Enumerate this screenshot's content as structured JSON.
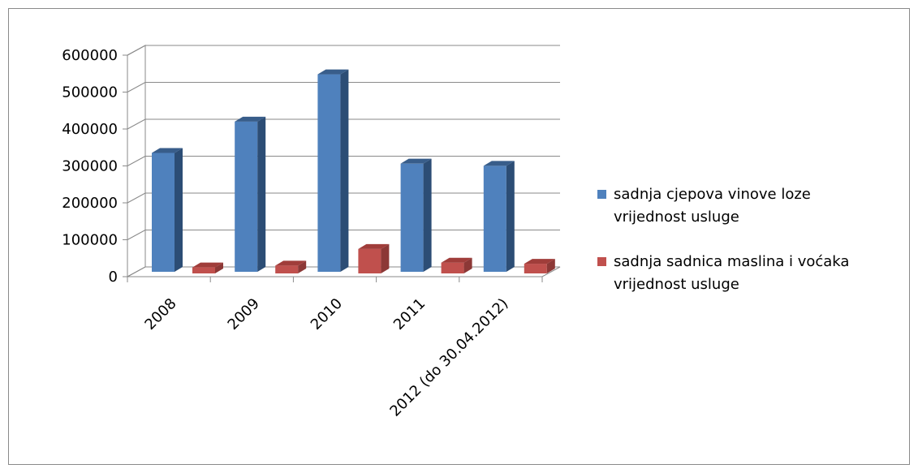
{
  "chart_data": {
    "type": "bar",
    "style": "3d-clustered-column",
    "categories": [
      "2008",
      "2009",
      "2010",
      "2011",
      "2012 (do 30.04.2012)"
    ],
    "series": [
      {
        "name": "sadnja cjepova vinove loze vrijednost usluge",
        "name_lines": [
          "sadnja cjepova vinove loze",
          "vrijednost usluge"
        ],
        "color": "#4F81BD",
        "side_color": "#2C4D75",
        "top_color": "#385D8A",
        "values": [
          322000,
          407000,
          535000,
          293000,
          287000
        ]
      },
      {
        "name": "sadnja sadnica maslina i voćaka vrijednost usluge",
        "name_lines": [
          "sadnja sadnica maslina i voćaka",
          "vrijednost usluge"
        ],
        "color": "#C0504D",
        "side_color": "#8C3836",
        "top_color": "#A03D3A",
        "values": [
          25000,
          30000,
          75000,
          38000,
          35000
        ]
      }
    ],
    "ylim": [
      0,
      600000
    ],
    "y_ticks": [
      "0",
      "100000",
      "200000",
      "300000",
      "400000",
      "500000",
      "600000"
    ],
    "grid": true,
    "legend_position": "right",
    "title": "",
    "xlabel": "",
    "ylabel": ""
  }
}
